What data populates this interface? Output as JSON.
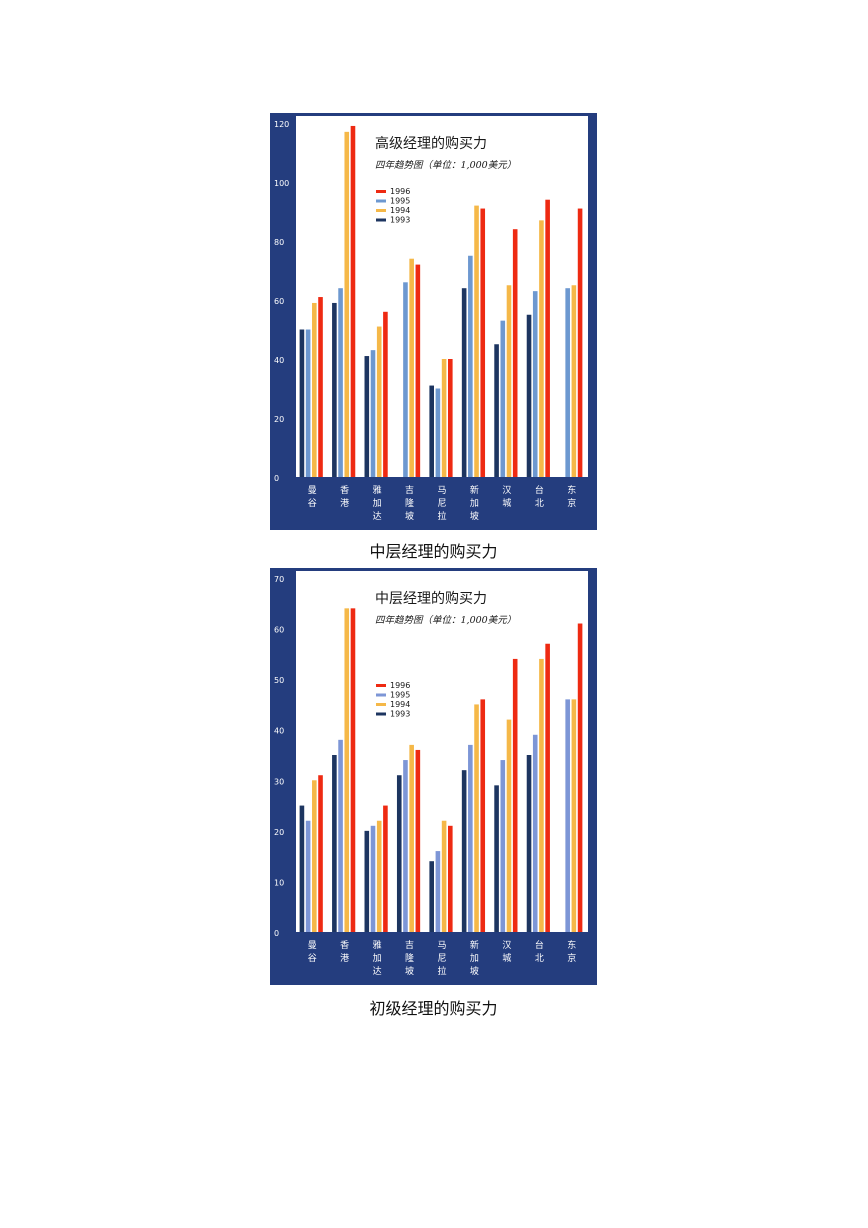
{
  "chart_data": [
    {
      "type": "bar",
      "title": "高级经理的购买力",
      "subtitle": "四年趋势图（单位：1,000美元）",
      "categories": [
        [
          "曼",
          "谷"
        ],
        [
          "香",
          "港"
        ],
        [
          "雅",
          "加",
          "达"
        ],
        [
          "吉",
          "隆",
          "坡"
        ],
        [
          "马",
          "尼",
          "拉"
        ],
        [
          "新",
          "加",
          "坡"
        ],
        [
          "汉",
          "城"
        ],
        [
          "台",
          "北"
        ],
        [
          "东",
          "京"
        ]
      ],
      "legend": [
        "1996",
        "1995",
        "1994",
        "1993"
      ],
      "legend_placement": "upper-left",
      "yticks": [
        "0",
        "20",
        "40",
        "60",
        "80",
        "100",
        "120"
      ],
      "ylim": [
        0,
        120
      ],
      "series": [
        {
          "name": "1993",
          "color": "#1d3560",
          "values": [
            50,
            59,
            41,
            null,
            31,
            64,
            45,
            55,
            null
          ]
        },
        {
          "name": "1995",
          "color": "#6d98d0",
          "values": [
            50,
            64,
            43,
            66,
            30,
            75,
            53,
            63,
            64
          ]
        },
        {
          "name": "1994",
          "color": "#f5b848",
          "values": [
            59,
            117,
            51,
            74,
            40,
            92,
            65,
            87,
            65
          ]
        },
        {
          "name": "1996",
          "color": "#ee2a12",
          "values": [
            61,
            119,
            56,
            72,
            40,
            91,
            84,
            94,
            91
          ]
        }
      ]
    },
    {
      "type": "bar",
      "title": "中层经理的购买力",
      "subtitle": "四年趋势图（单位：1,000美元）",
      "categories": [
        [
          "曼",
          "谷"
        ],
        [
          "香",
          "港"
        ],
        [
          "雅",
          "加",
          "达"
        ],
        [
          "吉",
          "隆",
          "坡"
        ],
        [
          "马",
          "尼",
          "拉"
        ],
        [
          "新",
          "加",
          "坡"
        ],
        [
          "汉",
          "城"
        ],
        [
          "台",
          "北"
        ],
        [
          "东",
          "京"
        ]
      ],
      "legend": [
        "1996",
        "1995",
        "1994",
        "1993"
      ],
      "legend_placement": "middle-left",
      "yticks": [
        "0",
        "10",
        "20",
        "30",
        "40",
        "50",
        "60",
        "70"
      ],
      "ylim": [
        0,
        70
      ],
      "series": [
        {
          "name": "1993",
          "color": "#1d3560",
          "values": [
            25,
            35,
            20,
            31,
            14,
            32,
            29,
            35,
            null
          ]
        },
        {
          "name": "1995",
          "color": "#7d96d6",
          "values": [
            22,
            38,
            21,
            34,
            16,
            37,
            34,
            39,
            46
          ]
        },
        {
          "name": "1994",
          "color": "#f5b848",
          "values": [
            30,
            64,
            22,
            37,
            22,
            45,
            42,
            54,
            46
          ]
        },
        {
          "name": "1996",
          "color": "#ee2a12",
          "values": [
            31,
            64,
            25,
            36,
            21,
            46,
            54,
            57,
            61
          ]
        }
      ]
    }
  ],
  "captions": {
    "caption_1": "中层经理的购买力",
    "caption_2": "初级经理的购买力"
  }
}
